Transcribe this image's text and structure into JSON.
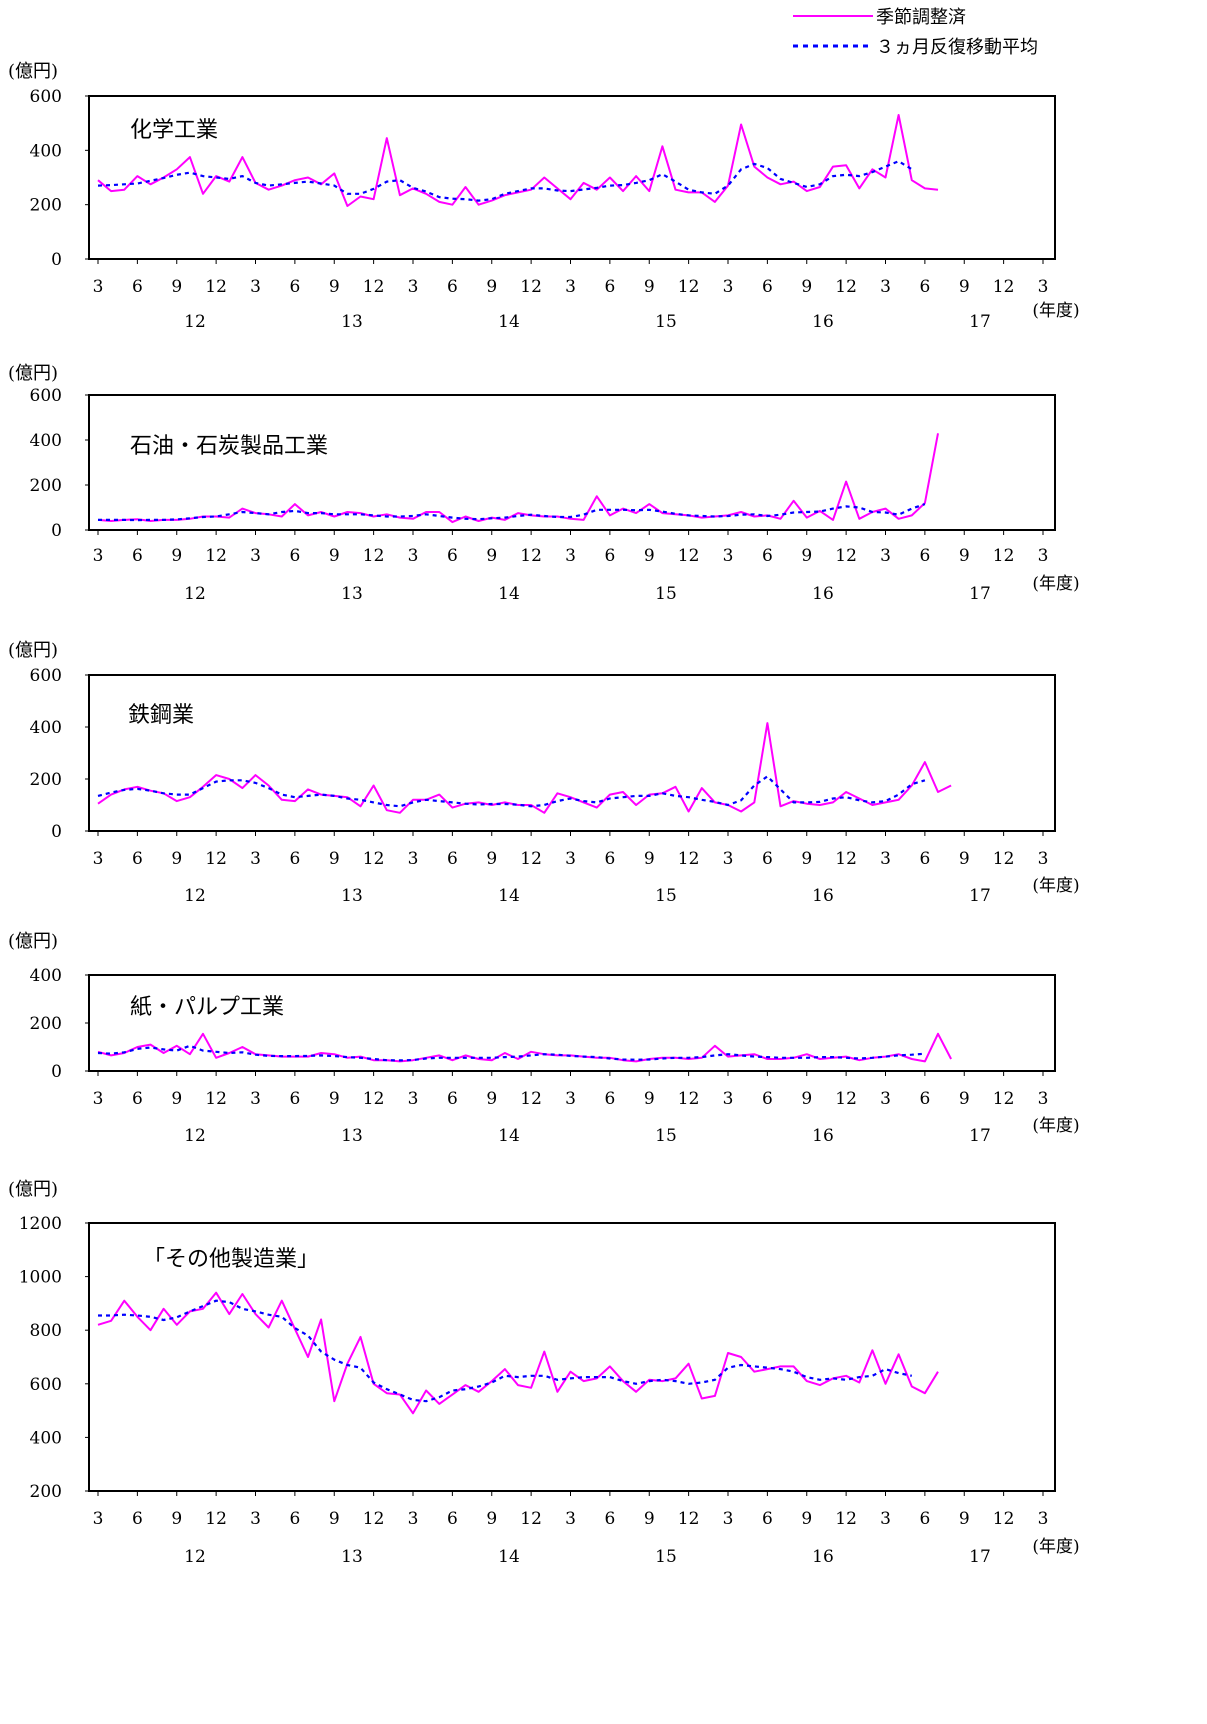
{
  "legend": {
    "adjusted": "季節調整済",
    "moving_average": "３ヵ月反復移動平均"
  },
  "colors": {
    "adjusted": "#ff00ff",
    "moving_average": "#0000ff"
  },
  "unit_label": "(億円)",
  "fiscal_year_label": "(年度)",
  "month_tick_labels": [
    "3",
    "6",
    "9",
    "12",
    "3",
    "6",
    "9",
    "12",
    "3",
    "6",
    "9",
    "12",
    "3",
    "6",
    "9",
    "12",
    "3",
    "6",
    "9",
    "12",
    "3",
    "6",
    "9",
    "12",
    "3"
  ],
  "fiscal_year_labels": [
    "12",
    "13",
    "14",
    "15",
    "16",
    "17"
  ],
  "chart_data": [
    {
      "type": "line",
      "title": "化学工業",
      "ylim": [
        0,
        600
      ],
      "yticks": [
        0,
        200,
        400,
        600
      ],
      "x_start": "2012-03",
      "legend": "top-right",
      "series": [
        {
          "name": "季節調整済",
          "values": [
            290,
            250,
            255,
            305,
            275,
            300,
            330,
            375,
            240,
            305,
            285,
            375,
            280,
            255,
            270,
            290,
            300,
            275,
            315,
            195,
            230,
            220,
            445,
            235,
            260,
            240,
            210,
            200,
            265,
            200,
            215,
            235,
            245,
            255,
            300,
            260,
            220,
            280,
            255,
            300,
            250,
            305,
            250,
            415,
            255,
            245,
            245,
            210,
            270,
            495,
            340,
            300,
            275,
            285,
            250,
            265,
            340,
            345,
            260,
            330,
            300,
            530,
            290,
            260,
            255
          ]
        },
        {
          "name": "３ヵ月反復移動平均",
          "values": [
            270,
            272,
            275,
            278,
            288,
            298,
            310,
            318,
            305,
            300,
            295,
            305,
            280,
            270,
            275,
            280,
            285,
            278,
            270,
            240,
            240,
            258,
            285,
            290,
            262,
            248,
            228,
            222,
            220,
            215,
            220,
            240,
            250,
            260,
            260,
            252,
            250,
            256,
            262,
            270,
            272,
            280,
            290,
            312,
            285,
            255,
            245,
            240,
            270,
            330,
            350,
            335,
            295,
            280,
            265,
            275,
            305,
            310,
            305,
            320,
            340,
            360,
            330
          ]
        }
      ]
    },
    {
      "type": "line",
      "title": "石油・石炭製品工業",
      "ylim": [
        0,
        600
      ],
      "yticks": [
        0,
        200,
        400,
        600
      ],
      "x_start": "2012-03",
      "series": [
        {
          "name": "季節調整済",
          "values": [
            45,
            40,
            45,
            48,
            40,
            45,
            45,
            50,
            60,
            60,
            55,
            95,
            75,
            70,
            60,
            115,
            65,
            80,
            60,
            80,
            75,
            60,
            70,
            55,
            50,
            80,
            80,
            35,
            60,
            40,
            55,
            45,
            75,
            65,
            60,
            60,
            50,
            45,
            150,
            65,
            95,
            75,
            115,
            75,
            70,
            65,
            55,
            60,
            65,
            80,
            60,
            65,
            50,
            130,
            55,
            85,
            45,
            215,
            50,
            80,
            95,
            50,
            65,
            120,
            430
          ]
        },
        {
          "name": "３ヵ月反復移動平均",
          "values": [
            45,
            45,
            45,
            44,
            45,
            45,
            47,
            52,
            58,
            60,
            70,
            80,
            75,
            70,
            80,
            85,
            75,
            75,
            70,
            70,
            70,
            65,
            60,
            60,
            62,
            70,
            62,
            55,
            50,
            48,
            52,
            55,
            62,
            68,
            62,
            58,
            58,
            68,
            90,
            90,
            90,
            88,
            90,
            82,
            72,
            65,
            62,
            60,
            62,
            68,
            70,
            62,
            68,
            78,
            80,
            82,
            95,
            105,
            100,
            80,
            78,
            68,
            95,
            115
          ]
        }
      ]
    },
    {
      "type": "line",
      "title": "鉄鋼業",
      "ylim": [
        0,
        600
      ],
      "yticks": [
        0,
        200,
        400,
        600
      ],
      "x_start": "2012-03",
      "series": [
        {
          "name": "季節調整済",
          "values": [
            105,
            140,
            160,
            170,
            155,
            145,
            115,
            130,
            170,
            215,
            200,
            165,
            215,
            175,
            120,
            115,
            160,
            140,
            135,
            130,
            95,
            175,
            80,
            70,
            120,
            120,
            140,
            90,
            105,
            110,
            100,
            110,
            100,
            100,
            70,
            145,
            130,
            110,
            90,
            140,
            150,
            100,
            140,
            145,
            170,
            75,
            165,
            110,
            100,
            75,
            110,
            415,
            95,
            115,
            105,
            100,
            110,
            150,
            125,
            100,
            110,
            120,
            175,
            265,
            150,
            175
          ]
        },
        {
          "name": "３ヵ月反復移動平均",
          "values": [
            135,
            148,
            158,
            162,
            155,
            145,
            140,
            140,
            165,
            190,
            195,
            195,
            185,
            165,
            140,
            130,
            135,
            140,
            135,
            125,
            120,
            110,
            100,
            95,
            110,
            120,
            115,
            110,
            105,
            102,
            104,
            104,
            101,
            95,
            100,
            115,
            125,
            115,
            110,
            125,
            130,
            135,
            135,
            145,
            135,
            130,
            120,
            112,
            100,
            118,
            175,
            210,
            160,
            110,
            110,
            112,
            125,
            130,
            118,
            110,
            115,
            140,
            180,
            195
          ]
        }
      ]
    },
    {
      "type": "line",
      "title": "紙・パルプ工業",
      "ylim": [
        0,
        400
      ],
      "yticks": [
        0,
        200,
        400
      ],
      "x_start": "2012-03",
      "series": [
        {
          "name": "季節調整済",
          "values": [
            80,
            65,
            75,
            100,
            110,
            75,
            105,
            70,
            155,
            55,
            75,
            100,
            70,
            65,
            60,
            60,
            60,
            75,
            70,
            55,
            60,
            45,
            45,
            40,
            45,
            55,
            65,
            45,
            65,
            50,
            45,
            75,
            50,
            80,
            70,
            65,
            65,
            60,
            55,
            55,
            45,
            40,
            50,
            55,
            55,
            50,
            55,
            105,
            60,
            65,
            70,
            50,
            50,
            55,
            70,
            50,
            55,
            60,
            45,
            55,
            60,
            70,
            50,
            40,
            155,
            50
          ]
        },
        {
          "name": "３ヵ月反復移動平均",
          "values": [
            75,
            72,
            78,
            92,
            98,
            90,
            85,
            105,
            85,
            80,
            75,
            78,
            68,
            63,
            62,
            62,
            63,
            65,
            62,
            58,
            55,
            50,
            45,
            44,
            46,
            52,
            55,
            55,
            55,
            55,
            55,
            58,
            60,
            65,
            70,
            68,
            63,
            60,
            58,
            52,
            48,
            47,
            48,
            52,
            55,
            55,
            58,
            65,
            70,
            65,
            60,
            58,
            55,
            55,
            55,
            58,
            58,
            55,
            52,
            55,
            60,
            65,
            68,
            72
          ]
        }
      ]
    },
    {
      "type": "line",
      "title": "「その他製造業」",
      "ylim": [
        200,
        1200
      ],
      "yticks": [
        200,
        400,
        600,
        800,
        1000,
        1200
      ],
      "x_start": "2012-03",
      "series": [
        {
          "name": "季節調整済",
          "values": [
            820,
            835,
            910,
            850,
            800,
            880,
            820,
            870,
            880,
            940,
            860,
            935,
            860,
            810,
            910,
            805,
            700,
            840,
            535,
            675,
            775,
            600,
            565,
            560,
            490,
            575,
            525,
            560,
            595,
            570,
            610,
            655,
            595,
            585,
            720,
            570,
            645,
            610,
            620,
            665,
            610,
            570,
            615,
            610,
            620,
            675,
            545,
            555,
            715,
            700,
            645,
            655,
            665,
            665,
            610,
            595,
            620,
            630,
            605,
            725,
            600,
            710,
            590,
            565,
            645
          ]
        },
        {
          "name": "３ヵ月反復移動平均",
          "values": [
            855,
            855,
            858,
            855,
            850,
            838,
            848,
            870,
            890,
            910,
            905,
            880,
            870,
            858,
            850,
            808,
            780,
            720,
            690,
            670,
            660,
            605,
            580,
            560,
            540,
            535,
            550,
            575,
            580,
            590,
            605,
            630,
            625,
            630,
            630,
            615,
            620,
            625,
            625,
            625,
            610,
            600,
            610,
            615,
            610,
            600,
            605,
            615,
            660,
            670,
            665,
            660,
            655,
            645,
            625,
            615,
            620,
            615,
            625,
            630,
            655,
            640,
            630
          ]
        }
      ]
    }
  ]
}
